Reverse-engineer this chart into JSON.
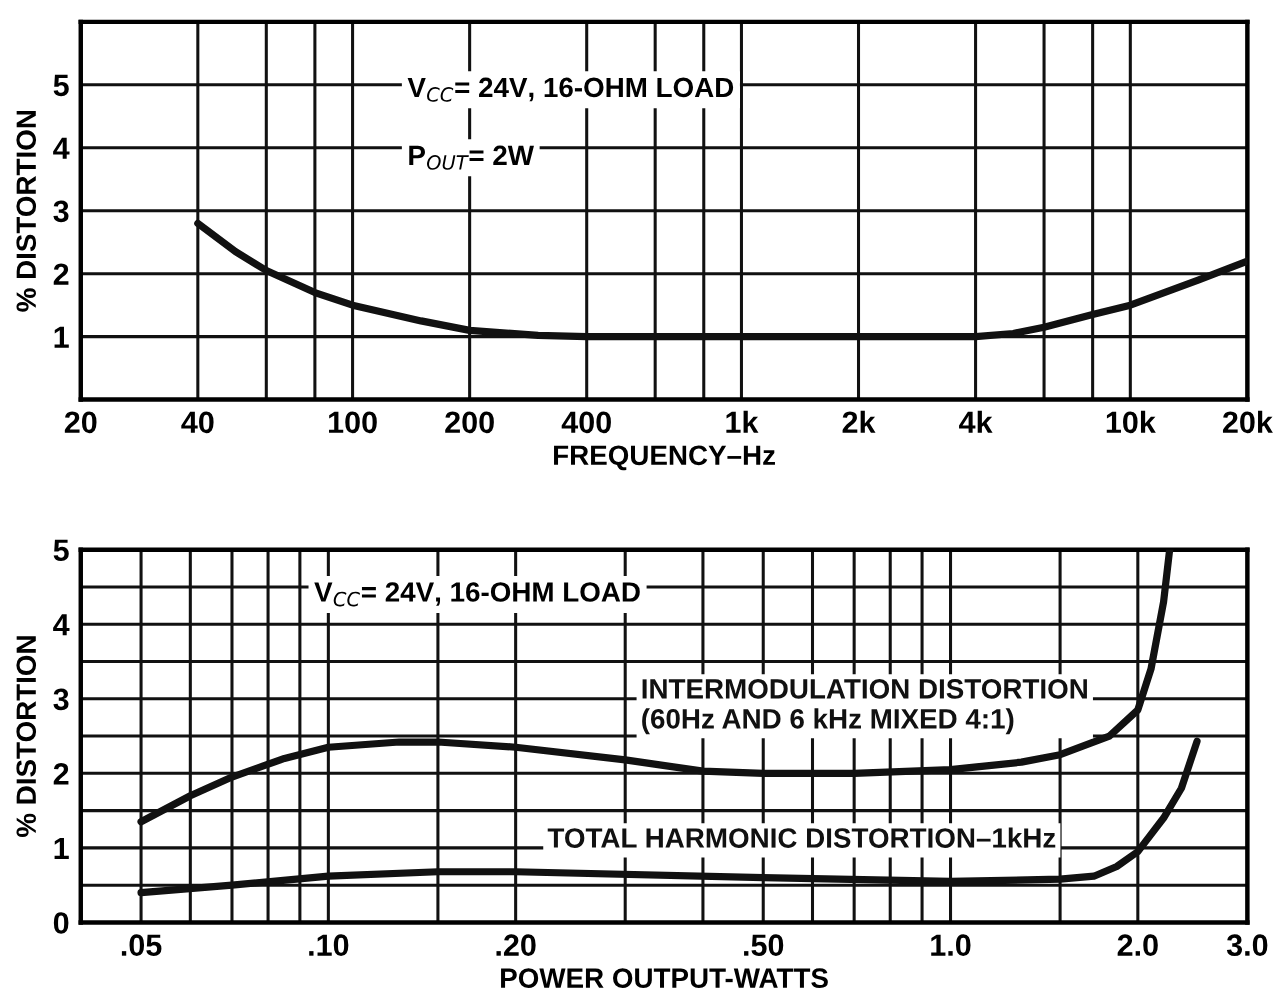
{
  "chart_data": [
    {
      "type": "line",
      "xlabel": "FREQUENCY–Hz",
      "ylabel": "% DISTORTION",
      "log": "x",
      "grid": true,
      "legend": false,
      "marker": "none",
      "line_style": "solid",
      "annotations": [
        "V$_{CC}$= 24V, 16-OHM LOAD",
        "P$_{OUT}$= 2W"
      ],
      "xlim": [
        20,
        20000
      ],
      "ylim": [
        0,
        6
      ],
      "xticks": [
        20,
        40,
        {
          "value": 60,
          "label": null
        },
        {
          "value": 80,
          "label": null
        },
        100,
        200,
        400,
        {
          "value": 600,
          "label": null
        },
        {
          "value": 800,
          "label": null
        },
        {
          "value": 1000,
          "label": "1k"
        },
        {
          "value": 2000,
          "label": "2k"
        },
        {
          "value": 4000,
          "label": "4k"
        },
        {
          "value": 6000,
          "label": null
        },
        {
          "value": 8000,
          "label": null
        },
        {
          "value": 10000,
          "label": "10k"
        },
        {
          "value": 20000,
          "label": "20k"
        }
      ],
      "yticks": [
        1,
        2,
        3,
        4,
        5
      ],
      "series": [
        {
          "color": "#111111",
          "x": [
            40,
            50,
            60,
            80,
            100,
            150,
            200,
            300,
            400,
            1000,
            2000,
            4000,
            5000,
            6000,
            8000,
            10000,
            15000,
            20000
          ],
          "values": [
            2.8,
            2.35,
            2.05,
            1.7,
            1.5,
            1.25,
            1.1,
            1.02,
            1.0,
            1.0,
            1.0,
            1.0,
            1.05,
            1.15,
            1.35,
            1.5,
            1.9,
            2.2
          ]
        }
      ]
    },
    {
      "type": "line",
      "xlabel": "POWER OUTPUT-WATTS",
      "ylabel": "% DISTORTION",
      "log": "x",
      "grid": true,
      "legend": false,
      "marker": "none",
      "line_style": "solid",
      "annotations": [
        "V$_{CC}$= 24V, 16-OHM LOAD"
      ],
      "xlim": [
        0.04,
        3.0
      ],
      "ylim": [
        0,
        5
      ],
      "xticks": [
        {
          "value": 0.05,
          "label": ".05"
        },
        {
          "value": 0.06,
          "label": null
        },
        {
          "value": 0.07,
          "label": null
        },
        {
          "value": 0.08,
          "label": null
        },
        {
          "value": 0.09,
          "label": null
        },
        {
          "value": 0.1,
          "label": ".10"
        },
        {
          "value": 0.15,
          "label": null
        },
        {
          "value": 0.2,
          "label": ".20"
        },
        {
          "value": 0.3,
          "label": null
        },
        {
          "value": 0.4,
          "label": null
        },
        {
          "value": 0.5,
          "label": ".50"
        },
        {
          "value": 0.6,
          "label": null
        },
        {
          "value": 0.7,
          "label": null
        },
        {
          "value": 0.8,
          "label": null
        },
        {
          "value": 0.9,
          "label": null
        },
        {
          "value": 1.0,
          "label": "1.0"
        },
        {
          "value": 1.5,
          "label": null
        },
        {
          "value": 2.0,
          "label": "2.0"
        },
        {
          "value": 3.0,
          "label": "3.0"
        }
      ],
      "yticks": [
        0,
        {
          "value": 0.5,
          "label": null
        },
        1,
        {
          "value": 1.5,
          "label": null
        },
        2,
        {
          "value": 2.5,
          "label": null
        },
        3,
        {
          "value": 3.5,
          "label": null
        },
        4,
        {
          "value": 4.5,
          "label": null
        },
        5
      ],
      "series": [
        {
          "name": "INTERMODULATION DISTORTION\n(60Hz AND 6 kHz MIXED 4:1)",
          "color": "#111111",
          "x": [
            0.05,
            0.06,
            0.07,
            0.085,
            0.1,
            0.13,
            0.15,
            0.2,
            0.3,
            0.4,
            0.5,
            0.7,
            1.0,
            1.3,
            1.5,
            1.8,
            2.0,
            2.1,
            2.2,
            2.25
          ],
          "values": [
            1.35,
            1.7,
            1.95,
            2.2,
            2.35,
            2.42,
            2.42,
            2.35,
            2.18,
            2.03,
            2.0,
            2.0,
            2.05,
            2.15,
            2.25,
            2.5,
            2.85,
            3.4,
            4.3,
            5.0
          ]
        },
        {
          "name": "TOTAL HARMONIC DISTORTION–1kHz",
          "color": "#111111",
          "x": [
            0.05,
            0.07,
            0.1,
            0.15,
            0.2,
            0.5,
            1.0,
            1.5,
            1.7,
            1.85,
            2.0,
            2.2,
            2.35,
            2.49
          ],
          "values": [
            0.4,
            0.5,
            0.62,
            0.68,
            0.68,
            0.6,
            0.55,
            0.58,
            0.62,
            0.75,
            0.95,
            1.4,
            1.8,
            2.43
          ]
        }
      ]
    }
  ]
}
